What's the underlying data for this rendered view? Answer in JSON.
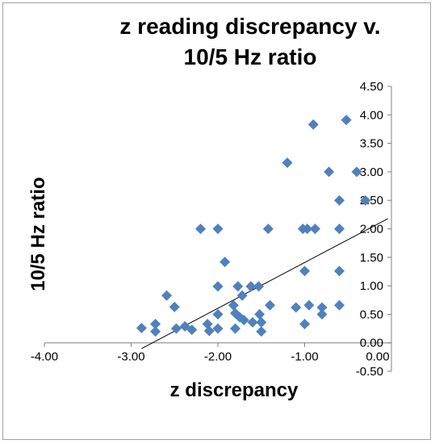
{
  "chart_data": {
    "type": "scatter",
    "title": [
      "z reading discrepancy v.",
      "10/5 Hz ratio"
    ],
    "xlabel": "z discrepancy",
    "ylabel": "10/5 Hz ratio",
    "xlim": [
      -4.0,
      0.0
    ],
    "ylim": [
      -0.5,
      4.5
    ],
    "x_ticks": [
      "-4.00",
      "-3.00",
      "-2.00",
      "-1.00",
      "0.00"
    ],
    "y_ticks": [
      "-0.50",
      "0.00",
      "0.50",
      "1.00",
      "1.50",
      "2.00",
      "2.50",
      "3.00",
      "3.50",
      "4.00",
      "4.50"
    ],
    "grid": false,
    "legend": "none",
    "marker_color": "#4f81bd",
    "trendline_color": "#000000",
    "trendline": {
      "x": [
        -2.88,
        -0.04
      ],
      "y": [
        -0.1,
        2.18
      ]
    },
    "points": [
      {
        "x": -2.88,
        "y": 0.26
      },
      {
        "x": -2.72,
        "y": 0.2
      },
      {
        "x": -2.72,
        "y": 0.33
      },
      {
        "x": -2.59,
        "y": 0.83
      },
      {
        "x": -2.5,
        "y": 0.63
      },
      {
        "x": -2.48,
        "y": 0.25
      },
      {
        "x": -2.38,
        "y": 0.29
      },
      {
        "x": -2.3,
        "y": 0.23
      },
      {
        "x": -2.2,
        "y": 2.0
      },
      {
        "x": -2.12,
        "y": 0.33
      },
      {
        "x": -2.1,
        "y": 0.21
      },
      {
        "x": -2.0,
        "y": 2.0
      },
      {
        "x": -2.0,
        "y": 0.99
      },
      {
        "x": -2.0,
        "y": 0.5
      },
      {
        "x": -2.0,
        "y": 0.25
      },
      {
        "x": -1.92,
        "y": 1.42
      },
      {
        "x": -1.82,
        "y": 0.66
      },
      {
        "x": -1.8,
        "y": 0.52
      },
      {
        "x": -1.8,
        "y": 0.25
      },
      {
        "x": -1.77,
        "y": 0.99
      },
      {
        "x": -1.75,
        "y": 0.45
      },
      {
        "x": -1.72,
        "y": 0.83
      },
      {
        "x": -1.7,
        "y": 0.4
      },
      {
        "x": -1.62,
        "y": 0.99
      },
      {
        "x": -1.6,
        "y": 0.36
      },
      {
        "x": -1.53,
        "y": 0.99
      },
      {
        "x": -1.52,
        "y": 0.5
      },
      {
        "x": -1.5,
        "y": 0.36
      },
      {
        "x": -1.5,
        "y": 0.2
      },
      {
        "x": -1.42,
        "y": 2.0
      },
      {
        "x": -1.4,
        "y": 0.66
      },
      {
        "x": -1.2,
        "y": 3.16
      },
      {
        "x": -1.1,
        "y": 0.62
      },
      {
        "x": -1.02,
        "y": 2.0
      },
      {
        "x": -1.0,
        "y": 1.26
      },
      {
        "x": -1.0,
        "y": 0.33
      },
      {
        "x": -0.97,
        "y": 2.0
      },
      {
        "x": -0.95,
        "y": 0.66
      },
      {
        "x": -0.9,
        "y": 3.83
      },
      {
        "x": -0.88,
        "y": 2.0
      },
      {
        "x": -0.8,
        "y": 0.62
      },
      {
        "x": -0.8,
        "y": 0.5
      },
      {
        "x": -0.72,
        "y": 3.0
      },
      {
        "x": -0.6,
        "y": 2.5
      },
      {
        "x": -0.6,
        "y": 2.0
      },
      {
        "x": -0.6,
        "y": 1.26
      },
      {
        "x": -0.6,
        "y": 0.66
      },
      {
        "x": -0.52,
        "y": 3.91
      },
      {
        "x": -0.4,
        "y": 3.0
      },
      {
        "x": -0.3,
        "y": 2.5
      }
    ]
  }
}
